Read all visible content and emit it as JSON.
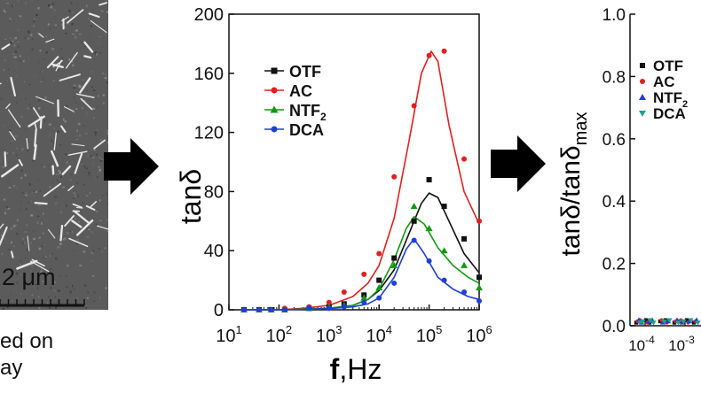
{
  "left_panel": {
    "scale_label": "2 μm",
    "caption_line1": "ed on",
    "caption_line2": "ay"
  },
  "chart_data": [
    {
      "type": "scatter",
      "x_scale": "log",
      "xlim": [
        10,
        1000000
      ],
      "ylim": [
        0,
        200
      ],
      "xticks": [
        10,
        100,
        1000,
        10000,
        100000,
        1000000
      ],
      "yticks": [
        0,
        40,
        80,
        120,
        160,
        200
      ],
      "ylabel": "tanδ",
      "xlabel_bold": "f",
      "xlabel_rest": ",Hz",
      "legend_position": "top-left",
      "series": [
        {
          "name": "OTF",
          "marker": "square",
          "color": "#111111",
          "x": [
            20,
            40,
            70,
            130,
            400,
            1000,
            2000,
            5000,
            10000,
            20000,
            50000,
            100000,
            200000,
            500000,
            1000000
          ],
          "y": [
            0,
            0,
            0,
            0,
            1,
            2,
            4,
            10,
            20,
            35,
            60,
            88,
            70,
            48,
            22
          ],
          "fit_x": [
            20,
            50,
            100,
            300,
            1000,
            3000,
            6000,
            10000,
            20000,
            40000,
            70000,
            100000,
            150000,
            250000,
            500000,
            1000000
          ],
          "fit_y": [
            0,
            0,
            0,
            0.5,
            1,
            3,
            7,
            13,
            27,
            52,
            72,
            79,
            76,
            60,
            38,
            25
          ]
        },
        {
          "name": "AC",
          "marker": "circle",
          "color": "#e02020",
          "x": [
            20,
            40,
            70,
            130,
            400,
            1000,
            2000,
            5000,
            10000,
            20000,
            50000,
            100000,
            200000,
            500000,
            1000000
          ],
          "y": [
            0,
            0,
            0,
            1,
            2,
            5,
            12,
            24,
            38,
            90,
            138,
            172,
            175,
            102,
            60
          ],
          "fit_x": [
            20,
            50,
            100,
            300,
            1000,
            3000,
            6000,
            10000,
            20000,
            40000,
            70000,
            110000,
            150000,
            250000,
            500000,
            1000000
          ],
          "fit_y": [
            0,
            0,
            0,
            1,
            3,
            9,
            18,
            30,
            62,
            115,
            160,
            175,
            168,
            125,
            80,
            58
          ]
        },
        {
          "name": "NTF2",
          "marker": "triangle",
          "color": "#119911",
          "x": [
            20,
            40,
            70,
            130,
            400,
            1000,
            2000,
            5000,
            10000,
            20000,
            50000,
            100000,
            200000,
            500000,
            1000000
          ],
          "y": [
            0,
            0,
            0,
            0,
            1,
            2,
            3,
            8,
            15,
            30,
            70,
            55,
            40,
            30,
            15
          ],
          "fit_x": [
            20,
            50,
            100,
            300,
            1000,
            3000,
            6000,
            10000,
            20000,
            35000,
            50000,
            80000,
            150000,
            300000,
            600000,
            1000000
          ],
          "fit_y": [
            0,
            0,
            0,
            0.5,
            1,
            3,
            7,
            14,
            34,
            55,
            63,
            58,
            42,
            30,
            22,
            18
          ]
        },
        {
          "name": "DCA",
          "marker": "circle",
          "color": "#1f3fd6",
          "x": [
            20,
            40,
            70,
            130,
            400,
            1000,
            2000,
            5000,
            10000,
            20000,
            50000,
            100000,
            200000,
            500000,
            1000000
          ],
          "y": [
            0,
            0,
            0,
            0,
            1,
            1,
            2,
            5,
            8,
            18,
            47,
            33,
            20,
            12,
            6
          ],
          "fit_x": [
            20,
            50,
            100,
            300,
            1000,
            3000,
            6000,
            10000,
            20000,
            35000,
            50000,
            80000,
            150000,
            300000,
            600000,
            1000000
          ],
          "fit_y": [
            0,
            0,
            0,
            0.3,
            0.8,
            2,
            4,
            8,
            22,
            41,
            48,
            38,
            22,
            14,
            9,
            7
          ]
        }
      ]
    },
    {
      "type": "scatter",
      "x_scale": "log",
      "ylim": [
        0,
        1.0
      ],
      "yticks": [
        "0.0",
        "0.2",
        "0.4",
        "0.6",
        "0.8",
        "1.0"
      ],
      "xticks_visible": [
        "10",
        "10"
      ],
      "xtick_exponents": [
        "-4",
        "-3"
      ],
      "ylabel_main": "tanδ/tanδ",
      "ylabel_sub": "max",
      "legend_position": "top-left",
      "series": [
        {
          "name": "OTF",
          "marker": "square",
          "color": "#111111"
        },
        {
          "name": "AC",
          "marker": "circle",
          "color": "#e02020"
        },
        {
          "name": "NTF2",
          "marker": "triangle",
          "color": "#1f3fd6"
        },
        {
          "name": "DCA",
          "marker": "triangle-down",
          "color": "#22a08a"
        }
      ]
    }
  ]
}
